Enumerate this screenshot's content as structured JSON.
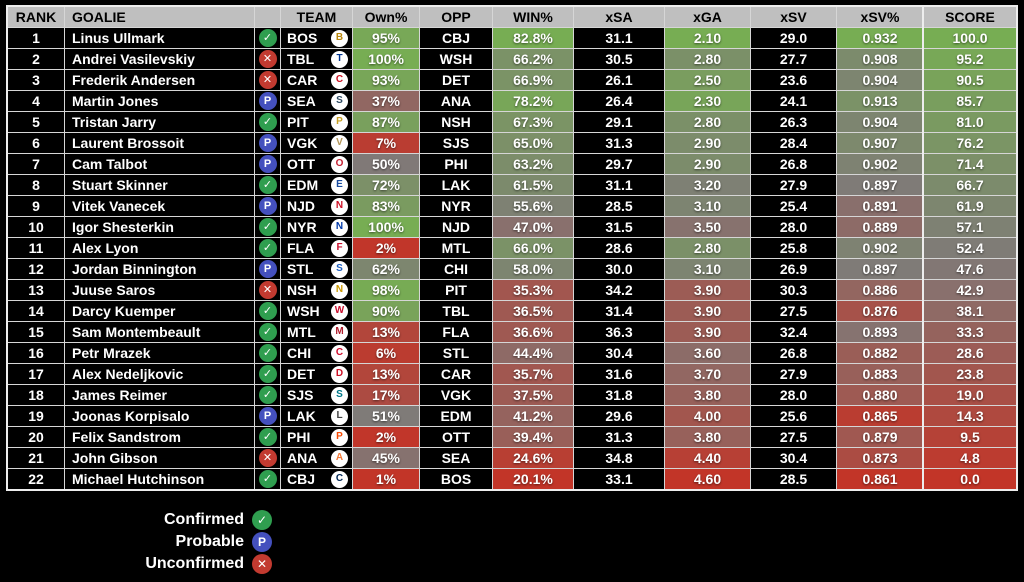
{
  "table": {
    "columns": [
      {
        "key": "rank",
        "label": "RANK"
      },
      {
        "key": "goalie",
        "label": "GOALIE"
      },
      {
        "key": "status",
        "label": ""
      },
      {
        "key": "team",
        "label": "TEAM"
      },
      {
        "key": "own_pct",
        "label": "Own%",
        "scale": "higher"
      },
      {
        "key": "opp",
        "label": "OPP"
      },
      {
        "key": "win_pct",
        "label": "WIN%",
        "scale": "higher"
      },
      {
        "key": "xsa",
        "label": "xSA"
      },
      {
        "key": "xga",
        "label": "xGA",
        "scale": "lower"
      },
      {
        "key": "xsv",
        "label": "xSV"
      },
      {
        "key": "xsv_pct",
        "label": "xSV%",
        "scale": "higher"
      }
    ],
    "score_column": {
      "key": "score",
      "label": "SCORE",
      "scale": "higher"
    },
    "rows": [
      {
        "rank": "1",
        "goalie": "Linus Ullmark",
        "status": "confirmed",
        "team": "BOS",
        "own_pct": "95%",
        "opp": "CBJ",
        "win_pct": "82.8%",
        "xsa": "31.1",
        "xga": "2.10",
        "xsv": "29.0",
        "xsv_pct": "0.932",
        "score": "100.0"
      },
      {
        "rank": "2",
        "goalie": "Andrei Vasilevskiy",
        "status": "unconfirmed",
        "team": "TBL",
        "own_pct": "100%",
        "opp": "WSH",
        "win_pct": "66.2%",
        "xsa": "30.5",
        "xga": "2.80",
        "xsv": "27.7",
        "xsv_pct": "0.908",
        "score": "95.2"
      },
      {
        "rank": "3",
        "goalie": "Frederik Andersen",
        "status": "unconfirmed",
        "team": "CAR",
        "own_pct": "93%",
        "opp": "DET",
        "win_pct": "66.9%",
        "xsa": "26.1",
        "xga": "2.50",
        "xsv": "23.6",
        "xsv_pct": "0.904",
        "score": "90.5"
      },
      {
        "rank": "4",
        "goalie": "Martin Jones",
        "status": "probable",
        "team": "SEA",
        "own_pct": "37%",
        "opp": "ANA",
        "win_pct": "78.2%",
        "xsa": "26.4",
        "xga": "2.30",
        "xsv": "24.1",
        "xsv_pct": "0.913",
        "score": "85.7"
      },
      {
        "rank": "5",
        "goalie": "Tristan Jarry",
        "status": "confirmed",
        "team": "PIT",
        "own_pct": "87%",
        "opp": "NSH",
        "win_pct": "67.3%",
        "xsa": "29.1",
        "xga": "2.80",
        "xsv": "26.3",
        "xsv_pct": "0.904",
        "score": "81.0"
      },
      {
        "rank": "6",
        "goalie": "Laurent Brossoit",
        "status": "probable",
        "team": "VGK",
        "own_pct": "7%",
        "opp": "SJS",
        "win_pct": "65.0%",
        "xsa": "31.3",
        "xga": "2.90",
        "xsv": "28.4",
        "xsv_pct": "0.907",
        "score": "76.2"
      },
      {
        "rank": "7",
        "goalie": "Cam Talbot",
        "status": "probable",
        "team": "OTT",
        "own_pct": "50%",
        "opp": "PHI",
        "win_pct": "63.2%",
        "xsa": "29.7",
        "xga": "2.90",
        "xsv": "26.8",
        "xsv_pct": "0.902",
        "score": "71.4"
      },
      {
        "rank": "8",
        "goalie": "Stuart Skinner",
        "status": "confirmed",
        "team": "EDM",
        "own_pct": "72%",
        "opp": "LAK",
        "win_pct": "61.5%",
        "xsa": "31.1",
        "xga": "3.20",
        "xsv": "27.9",
        "xsv_pct": "0.897",
        "score": "66.7"
      },
      {
        "rank": "9",
        "goalie": "Vitek Vanecek",
        "status": "probable",
        "team": "NJD",
        "own_pct": "83%",
        "opp": "NYR",
        "win_pct": "55.6%",
        "xsa": "28.5",
        "xga": "3.10",
        "xsv": "25.4",
        "xsv_pct": "0.891",
        "score": "61.9"
      },
      {
        "rank": "10",
        "goalie": "Igor Shesterkin",
        "status": "confirmed",
        "team": "NYR",
        "own_pct": "100%",
        "opp": "NJD",
        "win_pct": "47.0%",
        "xsa": "31.5",
        "xga": "3.50",
        "xsv": "28.0",
        "xsv_pct": "0.889",
        "score": "57.1"
      },
      {
        "rank": "11",
        "goalie": "Alex Lyon",
        "status": "confirmed",
        "team": "FLA",
        "own_pct": "2%",
        "opp": "MTL",
        "win_pct": "66.0%",
        "xsa": "28.6",
        "xga": "2.80",
        "xsv": "25.8",
        "xsv_pct": "0.902",
        "score": "52.4"
      },
      {
        "rank": "12",
        "goalie": "Jordan Binnington",
        "status": "probable",
        "team": "STL",
        "own_pct": "62%",
        "opp": "CHI",
        "win_pct": "58.0%",
        "xsa": "30.0",
        "xga": "3.10",
        "xsv": "26.9",
        "xsv_pct": "0.897",
        "score": "47.6"
      },
      {
        "rank": "13",
        "goalie": "Juuse Saros",
        "status": "unconfirmed",
        "team": "NSH",
        "own_pct": "98%",
        "opp": "PIT",
        "win_pct": "35.3%",
        "xsa": "34.2",
        "xga": "3.90",
        "xsv": "30.3",
        "xsv_pct": "0.886",
        "score": "42.9"
      },
      {
        "rank": "14",
        "goalie": "Darcy Kuemper",
        "status": "confirmed",
        "team": "WSH",
        "own_pct": "90%",
        "opp": "TBL",
        "win_pct": "36.5%",
        "xsa": "31.4",
        "xga": "3.90",
        "xsv": "27.5",
        "xsv_pct": "0.876",
        "score": "38.1"
      },
      {
        "rank": "15",
        "goalie": "Sam Montembeault",
        "status": "confirmed",
        "team": "MTL",
        "own_pct": "13%",
        "opp": "FLA",
        "win_pct": "36.6%",
        "xsa": "36.3",
        "xga": "3.90",
        "xsv": "32.4",
        "xsv_pct": "0.893",
        "score": "33.3"
      },
      {
        "rank": "16",
        "goalie": "Petr Mrazek",
        "status": "confirmed",
        "team": "CHI",
        "own_pct": "6%",
        "opp": "STL",
        "win_pct": "44.4%",
        "xsa": "30.4",
        "xga": "3.60",
        "xsv": "26.8",
        "xsv_pct": "0.882",
        "score": "28.6"
      },
      {
        "rank": "17",
        "goalie": "Alex Nedeljkovic",
        "status": "confirmed",
        "team": "DET",
        "own_pct": "13%",
        "opp": "CAR",
        "win_pct": "35.7%",
        "xsa": "31.6",
        "xga": "3.70",
        "xsv": "27.9",
        "xsv_pct": "0.883",
        "score": "23.8"
      },
      {
        "rank": "18",
        "goalie": "James Reimer",
        "status": "confirmed",
        "team": "SJS",
        "own_pct": "17%",
        "opp": "VGK",
        "win_pct": "37.5%",
        "xsa": "31.8",
        "xga": "3.80",
        "xsv": "28.0",
        "xsv_pct": "0.880",
        "score": "19.0"
      },
      {
        "rank": "19",
        "goalie": "Joonas Korpisalo",
        "status": "probable",
        "team": "LAK",
        "own_pct": "51%",
        "opp": "EDM",
        "win_pct": "41.2%",
        "xsa": "29.6",
        "xga": "4.00",
        "xsv": "25.6",
        "xsv_pct": "0.865",
        "score": "14.3"
      },
      {
        "rank": "20",
        "goalie": "Felix Sandstrom",
        "status": "confirmed",
        "team": "PHI",
        "own_pct": "2%",
        "opp": "OTT",
        "win_pct": "39.4%",
        "xsa": "31.3",
        "xga": "3.80",
        "xsv": "27.5",
        "xsv_pct": "0.879",
        "score": "9.5"
      },
      {
        "rank": "21",
        "goalie": "John Gibson",
        "status": "unconfirmed",
        "team": "ANA",
        "own_pct": "45%",
        "opp": "SEA",
        "win_pct": "24.6%",
        "xsa": "34.8",
        "xga": "4.40",
        "xsv": "30.4",
        "xsv_pct": "0.873",
        "score": "4.8"
      },
      {
        "rank": "22",
        "goalie": "Michael Hutchinson",
        "status": "confirmed",
        "team": "CBJ",
        "own_pct": "1%",
        "opp": "BOS",
        "win_pct": "20.1%",
        "xsa": "33.1",
        "xga": "4.60",
        "xsv": "28.5",
        "xsv_pct": "0.861",
        "score": "0.0"
      }
    ]
  },
  "legend": {
    "items": [
      {
        "label": "Confirmed",
        "status": "confirmed"
      },
      {
        "label": "Probable",
        "status": "probable"
      },
      {
        "label": "Unconfirmed",
        "status": "unconfirmed"
      }
    ]
  },
  "status_styles": {
    "confirmed": {
      "color": "#2F9E4F",
      "glyph": "✓",
      "icon_name": "confirmed-check-icon"
    },
    "probable": {
      "color": "#4450BE",
      "glyph": "P",
      "icon_name": "probable-p-icon"
    },
    "unconfirmed": {
      "color": "#C23A30",
      "glyph": "✕",
      "icon_name": "unconfirmed-x-icon"
    }
  },
  "colors": {
    "scale_low": "#C23528",
    "scale_mid": "#7F7A78",
    "scale_high": "#77AD53",
    "header_bg": "#BFBFBF",
    "header_text": "#000000",
    "row_bg": "#000000",
    "row_text": "#FFFFFF",
    "page_bg": "#000000"
  },
  "team_colors": {
    "BOS": "#B8860B",
    "TBL": "#00338D",
    "CAR": "#CC1122",
    "SEA": "#2E4A62",
    "PIT": "#C9A227",
    "VGK": "#B4975A",
    "OTT": "#C52032",
    "EDM": "#1A4CA0",
    "NJD": "#CE1126",
    "NYR": "#0038A8",
    "FLA": "#C8102E",
    "STL": "#1F5FBF",
    "NSH": "#C99700",
    "WSH": "#C8102E",
    "MTL": "#AF1E2D",
    "CHI": "#CF0A2C",
    "DET": "#CE1126",
    "SJS": "#007889",
    "LAK": "#444444",
    "PHI": "#F74902",
    "ANA": "#F47A38",
    "CBJ": "#002654"
  }
}
